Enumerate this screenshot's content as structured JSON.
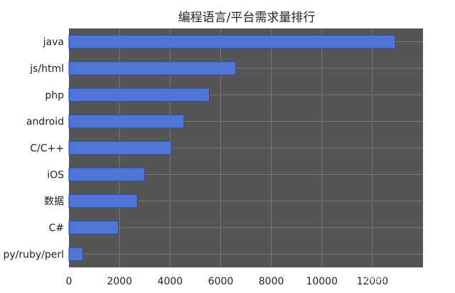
{
  "chart_data": {
    "type": "bar",
    "orientation": "horizontal",
    "title": "编程语言/平台需求量排行",
    "categories": [
      "java",
      "js/html",
      "php",
      "android",
      "C/C++",
      "iOS",
      "数据",
      "C#",
      "py/ruby/perl"
    ],
    "values": [
      12900,
      6600,
      5550,
      4550,
      4050,
      3000,
      2700,
      1950,
      550
    ],
    "xlim": [
      0,
      14000
    ],
    "xticks": [
      0,
      2000,
      4000,
      6000,
      8000,
      10000,
      12000
    ],
    "xlabel": "",
    "ylabel": "",
    "grid": true,
    "colors": {
      "bar": "#4f76d6",
      "bar_edge": "#2b4aa0",
      "plot_bg": "#555555",
      "grid": "#7a7a7a"
    }
  },
  "watermark": "头条 @OREbb"
}
